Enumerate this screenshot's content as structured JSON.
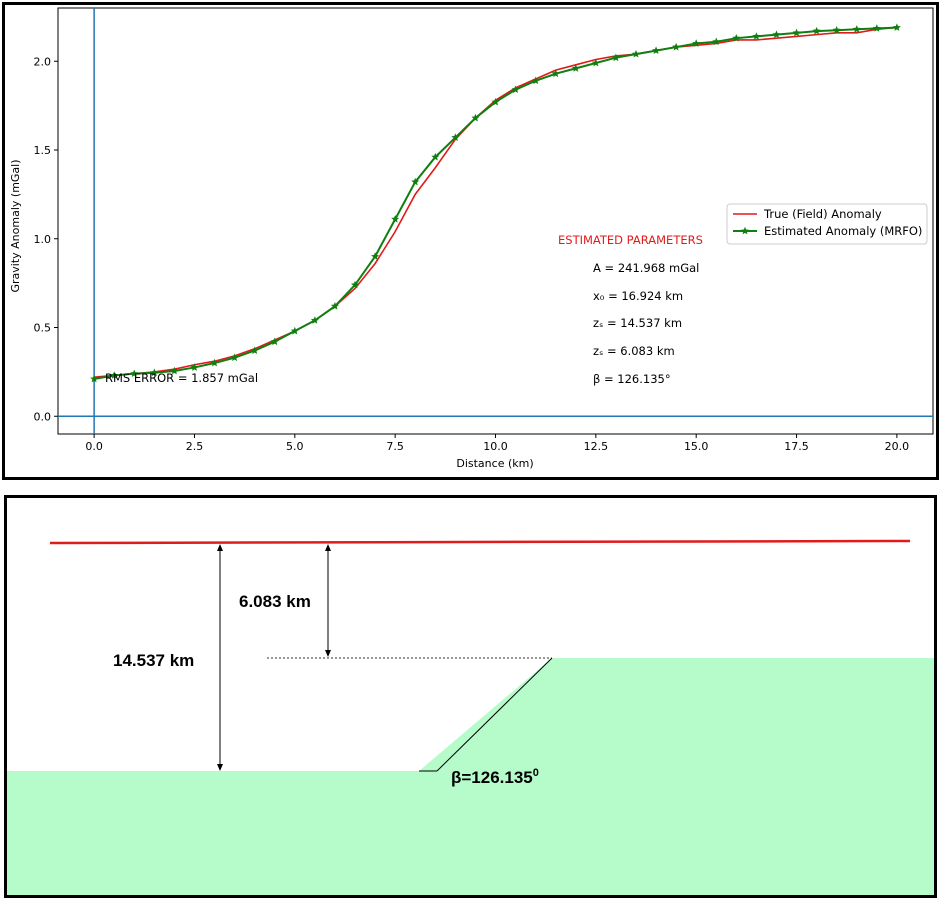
{
  "chart_data": {
    "type": "line",
    "xlabel": "Distance (km)",
    "ylabel": "Gravity Anomaly (mGal)",
    "xlim": [
      -0.9,
      20.9
    ],
    "ylim": [
      -0.1,
      2.3
    ],
    "xticks": [
      "0.0",
      "2.5",
      "5.0",
      "7.5",
      "10.0",
      "12.5",
      "15.0",
      "17.5",
      "20.0"
    ],
    "yticks": [
      "0.0",
      "0.5",
      "1.0",
      "1.5",
      "2.0"
    ],
    "series": [
      {
        "name": "True (Field) Anomaly",
        "color": "#e01b1b",
        "marker": "none",
        "x": [
          0,
          0.5,
          1,
          1.5,
          2,
          2.5,
          3,
          3.5,
          4,
          4.5,
          5,
          5.5,
          6,
          6.5,
          7,
          7.5,
          8,
          8.5,
          9,
          9.5,
          10,
          10.5,
          11,
          11.5,
          12,
          12.5,
          13,
          13.5,
          14,
          14.5,
          15,
          15.5,
          16,
          16.5,
          17,
          17.5,
          18,
          18.5,
          19,
          19.5,
          20
        ],
        "y": [
          0.22,
          0.23,
          0.24,
          0.25,
          0.265,
          0.29,
          0.31,
          0.34,
          0.38,
          0.43,
          0.48,
          0.54,
          0.62,
          0.72,
          0.86,
          1.04,
          1.25,
          1.4,
          1.56,
          1.68,
          1.78,
          1.85,
          1.9,
          1.95,
          1.98,
          2.01,
          2.03,
          2.04,
          2.06,
          2.08,
          2.09,
          2.1,
          2.12,
          2.12,
          2.13,
          2.14,
          2.15,
          2.16,
          2.16,
          2.18,
          2.19
        ]
      },
      {
        "name": "Estimated Anomaly (MRFO)",
        "color": "#0f7f0f",
        "marker": "star",
        "x": [
          0,
          0.5,
          1,
          1.5,
          2,
          2.5,
          3,
          3.5,
          4,
          4.5,
          5,
          5.5,
          6,
          6.5,
          7,
          7.5,
          8,
          8.5,
          9,
          9.5,
          10,
          10.5,
          11,
          11.5,
          12,
          12.5,
          13,
          13.5,
          14,
          14.5,
          15,
          15.5,
          16,
          16.5,
          17,
          17.5,
          18,
          18.5,
          19,
          19.5,
          20
        ],
        "y": [
          0.21,
          0.23,
          0.24,
          0.245,
          0.255,
          0.275,
          0.3,
          0.33,
          0.37,
          0.42,
          0.48,
          0.54,
          0.62,
          0.74,
          0.9,
          1.11,
          1.32,
          1.46,
          1.57,
          1.68,
          1.77,
          1.84,
          1.89,
          1.93,
          1.96,
          1.99,
          2.02,
          2.04,
          2.06,
          2.08,
          2.1,
          2.11,
          2.13,
          2.14,
          2.15,
          2.16,
          2.17,
          2.175,
          2.18,
          2.185,
          2.19
        ]
      }
    ],
    "legend_position": "center-right",
    "rms_text": "RMS ERROR = 1.857 mGal",
    "params_title": "ESTIMATED PARAMETERS",
    "params": [
      "A = 241.968 mGal",
      "x₀ = 16.924 km",
      "zₛ = 14.537 km",
      "zₛ = 6.083 km",
      "β = 126.135°"
    ]
  },
  "model": {
    "depth_top": "6.083 km",
    "depth_bottom": "14.537 km",
    "angle_base": "β=126.135",
    "angle_sup": "0",
    "colors": {
      "surface": "#e01b1b",
      "body": "#b6fccb"
    }
  }
}
